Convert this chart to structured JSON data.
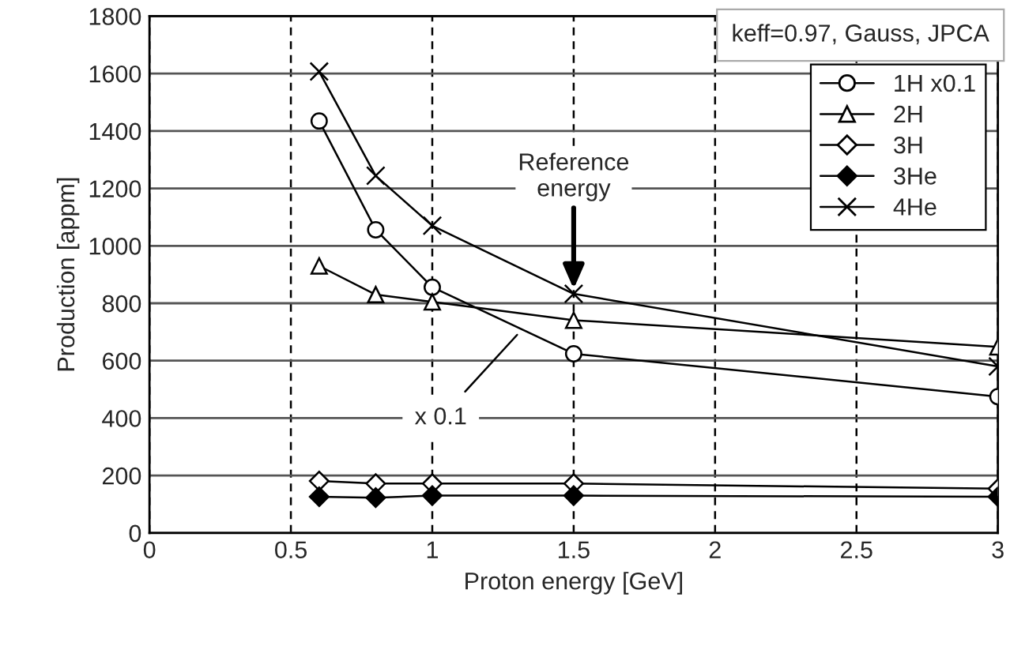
{
  "chart_data": {
    "type": "line",
    "xlabel": "Proton energy [GeV]",
    "ylabel": "Production [appm]",
    "x": [
      0.6,
      0.8,
      1.0,
      1.5,
      3.0
    ],
    "series": [
      {
        "name": "1H x0.1",
        "color": "#000000",
        "marker": "circle",
        "values": [
          1435,
          1056,
          856,
          624,
          475
        ]
      },
      {
        "name": "2H",
        "color": "#000000",
        "marker": "triangle",
        "values": [
          930,
          830,
          805,
          741,
          648
        ]
      },
      {
        "name": "3H",
        "color": "#000000",
        "marker": "diamond",
        "values": [
          181,
          172,
          172,
          172,
          154
        ]
      },
      {
        "name": "3He",
        "color": "#000000",
        "marker": "diamond",
        "values": [
          126,
          123,
          130,
          130,
          126
        ]
      },
      {
        "name": "4He",
        "color": "#000000",
        "marker": "cross",
        "values": [
          1607,
          1244,
          1070,
          833,
          580
        ]
      }
    ],
    "xlim": [
      0,
      3
    ],
    "xticks": [
      0,
      0.5,
      1,
      1.5,
      2,
      2.5,
      3
    ],
    "ylim": [
      0,
      1800
    ],
    "yticks": [
      0,
      200,
      400,
      600,
      800,
      1000,
      1200,
      1400,
      1600,
      1800
    ],
    "grid": true,
    "legend": "top right",
    "annotations": [
      "keff=0.97, Gauss, JPCA",
      {
        "text": "Reference\nenergy",
        "x": 1.5,
        "y": 850
      },
      {
        "text": "x 0.1",
        "x": 1.3,
        "y": 690
      }
    ]
  }
}
